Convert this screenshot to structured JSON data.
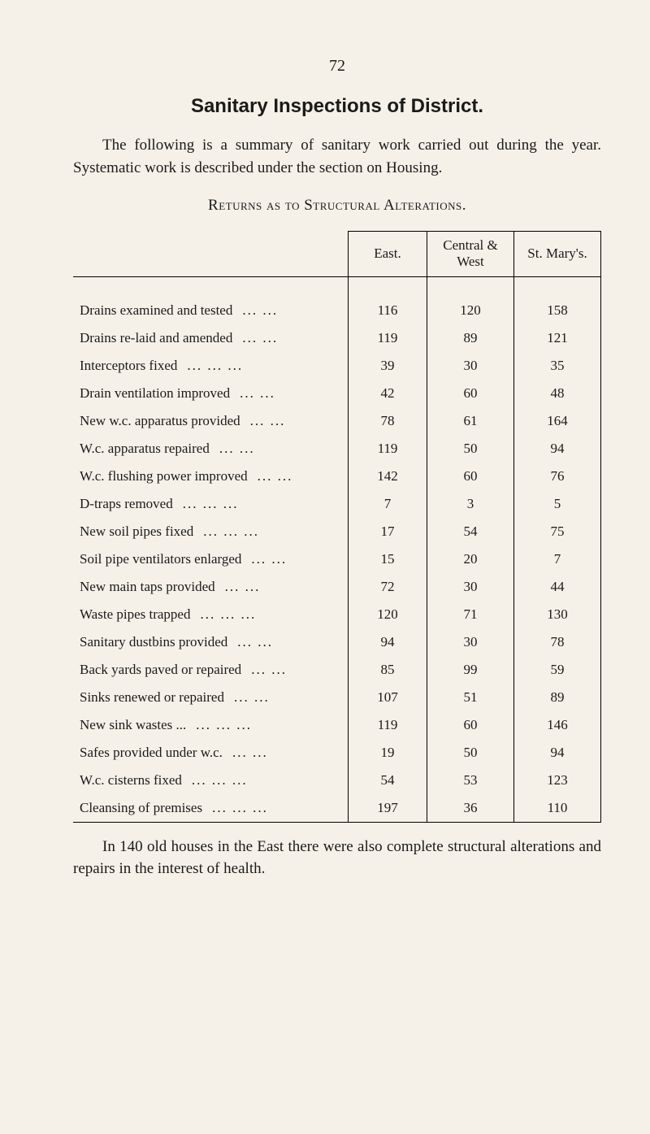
{
  "page_number": "72",
  "title": "Sanitary Inspections of District.",
  "intro": "The following is a summary of sanitary work carried out during the year. Systematic work is described under the section on Housing.",
  "subhead": "Returns as to Structural Alterations.",
  "columns": {
    "east": "East.",
    "central_west": "Central & West",
    "st_marys": "St. Mary's."
  },
  "rows": [
    {
      "desc": "Drains examined and tested",
      "dots": "...     ...",
      "east": "116",
      "cw": "120",
      "sm": "158"
    },
    {
      "desc": "Drains re-laid and amended",
      "dots": "...     ...",
      "east": "119",
      "cw": "89",
      "sm": "121"
    },
    {
      "desc": "Interceptors fixed",
      "dots": "...     ...     ...",
      "east": "39",
      "cw": "30",
      "sm": "35"
    },
    {
      "desc": "Drain ventilation improved",
      "dots": "...     ...",
      "east": "42",
      "cw": "60",
      "sm": "48"
    },
    {
      "desc": "New w.c. apparatus provided",
      "dots": "...     ...",
      "east": "78",
      "cw": "61",
      "sm": "164"
    },
    {
      "desc": "W.c. apparatus repaired",
      "dots": "...     ...",
      "east": "119",
      "cw": "50",
      "sm": "94"
    },
    {
      "desc": "W.c. flushing power improved",
      "dots": "...     ...",
      "east": "142",
      "cw": "60",
      "sm": "76"
    },
    {
      "desc": "D-traps removed",
      "dots": "...     ...     ...",
      "east": "7",
      "cw": "3",
      "sm": "5"
    },
    {
      "desc": "New soil pipes fixed",
      "dots": "...     ...     ...",
      "east": "17",
      "cw": "54",
      "sm": "75"
    },
    {
      "desc": "Soil pipe ventilators enlarged",
      "dots": "...     ...",
      "east": "15",
      "cw": "20",
      "sm": "7"
    },
    {
      "desc": "New main taps provided",
      "dots": "...     ...",
      "east": "72",
      "cw": "30",
      "sm": "44"
    },
    {
      "desc": "Waste pipes trapped",
      "dots": "...     ...     ...",
      "east": "120",
      "cw": "71",
      "sm": "130"
    },
    {
      "desc": "Sanitary dustbins provided",
      "dots": "...     ...",
      "east": "94",
      "cw": "30",
      "sm": "78"
    },
    {
      "desc": "Back yards paved or repaired",
      "dots": "...     ...",
      "east": "85",
      "cw": "99",
      "sm": "59"
    },
    {
      "desc": "Sinks renewed or repaired",
      "dots": "...     ...",
      "east": "107",
      "cw": "51",
      "sm": "89"
    },
    {
      "desc": "New sink wastes ...",
      "dots": "...     ...     ...",
      "east": "119",
      "cw": "60",
      "sm": "146"
    },
    {
      "desc": "Safes provided under w.c.",
      "dots": "...     ...",
      "east": "19",
      "cw": "50",
      "sm": "94"
    },
    {
      "desc": "W.c. cisterns fixed",
      "dots": "...     ...     ...",
      "east": "54",
      "cw": "53",
      "sm": "123"
    },
    {
      "desc": "Cleansing of premises",
      "dots": "...     ...     ...",
      "east": "197",
      "cw": "36",
      "sm": "110"
    }
  ],
  "closing": "In 140 old houses in the East there were also complete structural alterations and repairs in the interest of health."
}
